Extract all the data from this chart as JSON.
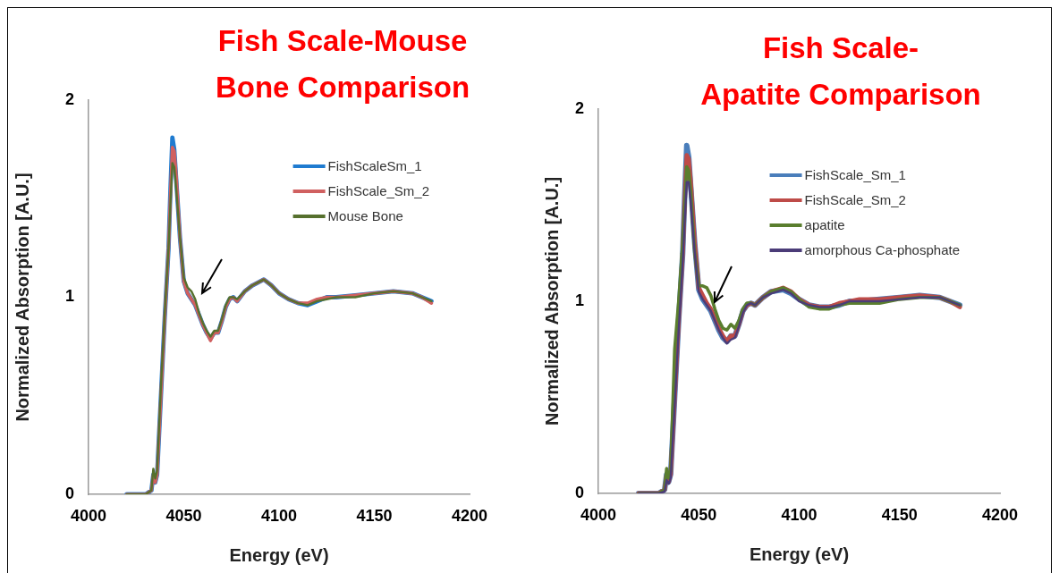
{
  "chart_data": [
    {
      "type": "line",
      "title": "Fish Scale-Mouse\nBone Comparison",
      "xlabel": "Energy (eV)",
      "ylabel": "Normalized Absorption [A.U.]",
      "legend": "top right",
      "xlim": [
        4000,
        4200
      ],
      "xticks": [
        4000,
        4050,
        4100,
        4150,
        4200
      ],
      "ylim": [
        0,
        2
      ],
      "yticks": [
        0,
        1,
        2
      ],
      "x": [
        4020,
        4030,
        4033,
        4034,
        4035,
        4036,
        4038,
        4040,
        4042,
        4043,
        4044,
        4045,
        4046,
        4048,
        4050,
        4052,
        4054,
        4056,
        4058,
        4060,
        4062,
        4064,
        4066,
        4068,
        4070,
        4072,
        4074,
        4076,
        4078,
        4082,
        4086,
        4092,
        4096,
        4100,
        4105,
        4110,
        4115,
        4120,
        4125,
        4130,
        4140,
        4150,
        4160,
        4170,
        4175,
        4180
      ],
      "series": [
        {
          "name": "FishScaleSm_1",
          "color": "#1f7bd0",
          "values": [
            0,
            0,
            0.02,
            0.1,
            0.06,
            0.1,
            0.5,
            0.9,
            1.25,
            1.55,
            1.81,
            1.75,
            1.6,
            1.3,
            1.08,
            1.02,
            0.99,
            0.96,
            0.91,
            0.86,
            0.82,
            0.79,
            0.82,
            0.82,
            0.88,
            0.95,
            0.99,
            1,
            0.98,
            1.03,
            1.06,
            1.09,
            1.06,
            1.02,
            0.99,
            0.97,
            0.96,
            0.98,
            1,
            1,
            1.01,
            1.02,
            1.03,
            1.02,
            1,
            0.98
          ]
        },
        {
          "name": "FishScale_Sm_2",
          "color": "#d06060",
          "values": [
            0,
            0,
            0.02,
            0.1,
            0.06,
            0.1,
            0.5,
            0.9,
            1.25,
            1.52,
            1.76,
            1.74,
            1.62,
            1.3,
            1.08,
            1.02,
            0.99,
            0.96,
            0.91,
            0.86,
            0.82,
            0.78,
            0.82,
            0.82,
            0.88,
            0.95,
            0.99,
            1,
            0.98,
            1.03,
            1.06,
            1.09,
            1.06,
            1.02,
            0.99,
            0.97,
            0.97,
            0.99,
            1,
            1,
            1.01,
            1.02,
            1.03,
            1.02,
            1,
            0.97
          ]
        },
        {
          "name": "Mouse Bone",
          "color": "#56702e",
          "values": [
            0,
            0,
            0.02,
            0.13,
            0.08,
            0.12,
            0.55,
            0.92,
            1.25,
            1.48,
            1.68,
            1.66,
            1.55,
            1.3,
            1.1,
            1.05,
            1.03,
            0.99,
            0.92,
            0.87,
            0.83,
            0.8,
            0.83,
            0.83,
            0.89,
            0.96,
            1,
            1,
            0.99,
            1.03,
            1.06,
            1.09,
            1.06,
            1.02,
            0.99,
            0.97,
            0.96,
            0.98,
            0.99,
            1,
            1,
            1.02,
            1.03,
            1.02,
            1,
            0.98
          ]
        }
      ]
    },
    {
      "type": "line",
      "title": "Fish Scale-\nApatite Comparison",
      "xlabel": "Energy (eV)",
      "ylabel": "Normalized Absorption [A.U.]",
      "legend": "top right",
      "xlim": [
        4000,
        4200
      ],
      "xticks": [
        4000,
        4050,
        4100,
        4150,
        4200
      ],
      "ylim": [
        0,
        2
      ],
      "yticks": [
        0,
        1,
        2
      ],
      "x": [
        4020,
        4030,
        4033,
        4034,
        4035,
        4036,
        4038,
        4040,
        4042,
        4043,
        4044,
        4045,
        4046,
        4048,
        4050,
        4052,
        4054,
        4056,
        4058,
        4060,
        4062,
        4064,
        4066,
        4068,
        4070,
        4072,
        4074,
        4076,
        4078,
        4082,
        4086,
        4092,
        4096,
        4100,
        4105,
        4110,
        4115,
        4120,
        4125,
        4130,
        4140,
        4150,
        4160,
        4170,
        4175,
        4180
      ],
      "series": [
        {
          "name": "FishScale_Sm_1",
          "color": "#4a7ebb",
          "values": [
            0,
            0,
            0.02,
            0.1,
            0.06,
            0.1,
            0.5,
            0.9,
            1.25,
            1.55,
            1.81,
            1.75,
            1.6,
            1.3,
            1.06,
            1.01,
            0.98,
            0.95,
            0.9,
            0.85,
            0.81,
            0.79,
            0.82,
            0.82,
            0.88,
            0.95,
            0.98,
            0.99,
            0.98,
            1.02,
            1.05,
            1.06,
            1.04,
            1.01,
            0.98,
            0.97,
            0.97,
            0.98,
            1,
            1,
            1.01,
            1.02,
            1.03,
            1.02,
            1,
            0.98
          ]
        },
        {
          "name": "FishScale_Sm_2",
          "color": "#be4b48",
          "values": [
            0,
            0,
            0.02,
            0.1,
            0.06,
            0.1,
            0.5,
            0.9,
            1.25,
            1.52,
            1.76,
            1.74,
            1.62,
            1.3,
            1.07,
            1.03,
            0.99,
            0.96,
            0.91,
            0.86,
            0.82,
            0.79,
            0.82,
            0.82,
            0.88,
            0.95,
            0.98,
            0.99,
            0.98,
            1.02,
            1.05,
            1.07,
            1.05,
            1.01,
            0.98,
            0.97,
            0.97,
            0.99,
            1,
            1.01,
            1.01,
            1.02,
            1.03,
            1.02,
            1,
            0.97
          ]
        },
        {
          "name": "apatite",
          "color": "#5a7e2e",
          "values": [
            0,
            0,
            0.02,
            0.13,
            0.08,
            0.12,
            0.75,
            1,
            1.3,
            1.5,
            1.7,
            1.68,
            1.57,
            1.25,
            1.08,
            1.08,
            1.07,
            1.03,
            0.96,
            0.9,
            0.86,
            0.85,
            0.88,
            0.86,
            0.9,
            0.96,
            0.99,
            0.99,
            0.98,
            1.02,
            1.05,
            1.07,
            1.05,
            1.01,
            0.97,
            0.96,
            0.96,
            0.98,
            0.99,
            0.99,
            0.99,
            1.01,
            1.02,
            1.02,
            1,
            0.98
          ]
        },
        {
          "name": "amorphous Ca-phosphate",
          "color": "#4b3c78",
          "values": [
            0,
            0,
            0.01,
            0.07,
            0.05,
            0.08,
            0.45,
            0.85,
            1.2,
            1.42,
            1.62,
            1.62,
            1.52,
            1.25,
            1.05,
            1.01,
            0.98,
            0.95,
            0.9,
            0.85,
            0.81,
            0.78,
            0.8,
            0.81,
            0.87,
            0.94,
            0.98,
            0.99,
            0.98,
            1.02,
            1.04,
            1.06,
            1.04,
            1,
            0.98,
            0.97,
            0.97,
            0.98,
            1,
            1,
            1,
            1.01,
            1.02,
            1.02,
            1,
            0.98
          ]
        }
      ]
    }
  ]
}
